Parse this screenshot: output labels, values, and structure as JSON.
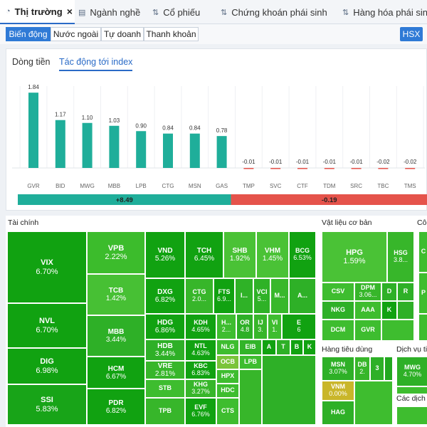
{
  "top_tabs": [
    {
      "label": "Thị trường",
      "icon": "pie-chart-icon",
      "active": true
    },
    {
      "label": "Ngành nghề",
      "icon": "list-icon"
    },
    {
      "label": "Cổ phiếu",
      "icon": "sort-icon"
    },
    {
      "label": "Chứng khoán phái sinh",
      "icon": "sort-icon"
    },
    {
      "label": "Hàng hóa phái sinh",
      "icon": "sort-icon"
    }
  ],
  "sub_tabs": [
    "Biến động",
    "Nước ngoài",
    "Tự doanh",
    "Thanh khoản"
  ],
  "exchange": "HSX",
  "chart_tabs": [
    "Dòng tiền",
    "Tác động tới index"
  ],
  "chart_data": {
    "type": "bar",
    "title": "",
    "categories": [
      "GVR",
      "BID",
      "MWG",
      "MBB",
      "LPB",
      "CTG",
      "MSN",
      "GAS",
      "TMP",
      "SVC",
      "CTF",
      "TDM",
      "SRC",
      "TBC",
      "TMS"
    ],
    "values": [
      1.84,
      1.17,
      1.1,
      1.03,
      0.9,
      0.84,
      0.84,
      0.78,
      -0.01,
      -0.01,
      -0.01,
      -0.01,
      -0.01,
      -0.02,
      -0.02
    ],
    "value_labels": [
      "1.84",
      "1.17",
      "1.10",
      "1.03",
      "0.90",
      "0.84",
      "0.84",
      "0.78",
      "-0.01",
      "-0.01",
      "-0.01",
      "-0.01",
      "-0.01",
      "-0.02",
      "-0.02"
    ],
    "ylim": [
      -0.1,
      2.0
    ],
    "colors": {
      "positive": "#1fae9a",
      "negative": "#e5534b"
    },
    "summary": {
      "positive": "+8.49",
      "negative": "-0.19",
      "positive_fraction": 0.52
    }
  },
  "heatmap": {
    "sectors": [
      "Tài chính",
      "Vật liệu cơ bản",
      "Công",
      "Hàng tiêu dùng",
      "Dịch vụ tiê",
      "Các dịch"
    ],
    "tiles": [
      {
        "s": "VIX",
        "p": "6.70%"
      },
      {
        "s": "NVL",
        "p": "6.70%"
      },
      {
        "s": "DIG",
        "p": "6.98%"
      },
      {
        "s": "SSI",
        "p": "5.83%"
      },
      {
        "s": "VPB",
        "p": "2.22%"
      },
      {
        "s": "TCB",
        "p": "1.42%"
      },
      {
        "s": "MBB",
        "p": "3.44%"
      },
      {
        "s": "HCM",
        "p": "6.67%"
      },
      {
        "s": "PDR",
        "p": "6.82%"
      },
      {
        "s": "VND",
        "p": "5.26%"
      },
      {
        "s": "TCH",
        "p": "6.45%"
      },
      {
        "s": "SHB",
        "p": "1.92%"
      },
      {
        "s": "VHM",
        "p": "1.45%"
      },
      {
        "s": "BCG",
        "p": "6.53%"
      },
      {
        "s": "DXG",
        "p": "6.82%"
      },
      {
        "s": "CTG",
        "p": "2.0..."
      },
      {
        "s": "FTS",
        "p": "6.9..."
      },
      {
        "s": "I...",
        "p": ""
      },
      {
        "s": "VCI",
        "p": "5..."
      },
      {
        "s": "M...",
        "p": ""
      },
      {
        "s": "A...",
        "p": ""
      },
      {
        "s": "HDG",
        "p": "6.86%"
      },
      {
        "s": "KDH",
        "p": "4.65%"
      },
      {
        "s": "H...",
        "p": "2..."
      },
      {
        "s": "OR",
        "p": "4.8"
      },
      {
        "s": "IJ",
        "p": "3."
      },
      {
        "s": "VI",
        "p": "1."
      },
      {
        "s": "E",
        "p": "6"
      },
      {
        "s": "HDB",
        "p": "3.44%"
      },
      {
        "s": "NTL",
        "p": "4.63%"
      },
      {
        "s": "NLG",
        "p": ""
      },
      {
        "s": "EIB",
        "p": ""
      },
      {
        "s": "A",
        "p": ""
      },
      {
        "s": "T",
        "p": ""
      },
      {
        "s": "B",
        "p": ""
      },
      {
        "s": "K",
        "p": ""
      },
      {
        "s": "VRE",
        "p": "2.81%"
      },
      {
        "s": "KBC",
        "p": "6.83%"
      },
      {
        "s": "LPB",
        "p": ""
      },
      {
        "s": "OCB",
        "p": ""
      },
      {
        "s": "STB",
        "p": ""
      },
      {
        "s": "KHG",
        "p": "3.27%"
      },
      {
        "s": "HPX",
        "p": ""
      },
      {
        "s": "HDC",
        "p": ""
      },
      {
        "s": "TPB",
        "p": ""
      },
      {
        "s": "EVF",
        "p": "6.76%"
      },
      {
        "s": "CTS",
        "p": ""
      },
      {
        "s": "HPG",
        "p": "1.59%"
      },
      {
        "s": "HSG",
        "p": "3.8..."
      },
      {
        "s": "CSV",
        "p": ""
      },
      {
        "s": "DPM",
        "p": "3.06..."
      },
      {
        "s": "D",
        "p": ""
      },
      {
        "s": "R",
        "p": ""
      },
      {
        "s": "NKG",
        "p": ""
      },
      {
        "s": "AAA",
        "p": ""
      },
      {
        "s": "K",
        "p": ""
      },
      {
        "s": "DCM",
        "p": ""
      },
      {
        "s": "GVR",
        "p": ""
      },
      {
        "s": "MSN",
        "p": "3.07%"
      },
      {
        "s": "DB",
        "p": "2."
      },
      {
        "s": "3",
        "p": ""
      },
      {
        "s": "VNM",
        "p": "0.00%"
      },
      {
        "s": "HAG",
        "p": ""
      },
      {
        "s": "MWG",
        "p": "4.70%"
      },
      {
        "s": "C",
        "p": ""
      },
      {
        "s": "P",
        "p": ""
      }
    ]
  }
}
